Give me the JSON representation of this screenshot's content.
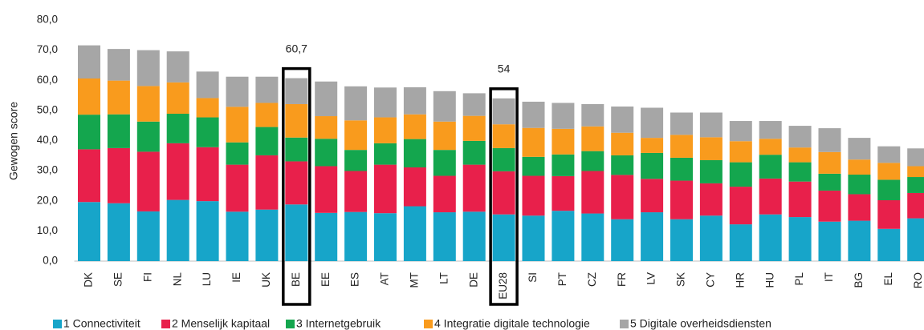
{
  "chart_data": {
    "type": "stacked_bar",
    "y_label": "Gewogen score",
    "categories": [
      "DK",
      "SE",
      "FI",
      "NL",
      "LU",
      "IE",
      "UK",
      "BE",
      "EE",
      "ES",
      "AT",
      "MT",
      "LT",
      "DE",
      "EU28",
      "SI",
      "PT",
      "CZ",
      "FR",
      "LV",
      "SK",
      "CY",
      "HR",
      "HU",
      "PL",
      "IT",
      "BG",
      "EL",
      "RO"
    ],
    "series": [
      {
        "name": "1 Connectiviteit",
        "color": "#17a5c9",
        "values": [
          19.6,
          19.2,
          16.5,
          20.3,
          19.9,
          16.4,
          17.1,
          18.8,
          16.0,
          16.3,
          15.9,
          18.2,
          16.2,
          16.4,
          15.5,
          15.1,
          16.7,
          15.8,
          13.9,
          16.2,
          13.9,
          15.1,
          12.2,
          15.5,
          14.6,
          13.1,
          13.4,
          10.7,
          14.2
        ]
      },
      {
        "name": "2 Menselijk kapitaal",
        "color": "#e8204b",
        "values": [
          17.5,
          18.3,
          19.8,
          18.8,
          17.9,
          15.6,
          18.0,
          14.3,
          15.5,
          13.6,
          16.1,
          12.9,
          12.1,
          15.6,
          14.3,
          13.2,
          11.5,
          14.1,
          14.7,
          11.1,
          12.8,
          10.7,
          12.5,
          11.9,
          11.8,
          10.3,
          8.8,
          9.5,
          8.4
        ]
      },
      {
        "name": "3 Internetgebruik",
        "color": "#14a64e",
        "values": [
          11.5,
          11.2,
          10.0,
          9.8,
          9.9,
          7.4,
          9.4,
          7.9,
          9.1,
          7.0,
          7.1,
          9.4,
          8.6,
          7.9,
          7.7,
          6.3,
          7.2,
          6.6,
          6.5,
          8.6,
          7.6,
          7.7,
          8.1,
          7.9,
          6.4,
          5.6,
          6.5,
          6.8,
          5.3
        ]
      },
      {
        "name": "4 Integratie digitale technologie",
        "color": "#f99b1d",
        "values": [
          12.0,
          11.2,
          11.8,
          10.4,
          6.4,
          11.8,
          8.0,
          11.1,
          7.5,
          9.8,
          8.6,
          8.2,
          9.4,
          8.3,
          7.9,
          9.6,
          8.5,
          8.2,
          7.5,
          5.0,
          7.6,
          7.6,
          7.0,
          5.3,
          4.9,
          7.2,
          5.0,
          5.6,
          3.6
        ]
      },
      {
        "name": "5 Digitale overheidsdiensten",
        "color": "#a6a6a6",
        "values": [
          11.0,
          10.5,
          11.9,
          10.3,
          8.8,
          10.0,
          8.7,
          8.6,
          11.5,
          11.3,
          9.9,
          9.0,
          10.1,
          7.5,
          8.6,
          8.7,
          8.6,
          7.4,
          8.7,
          10.0,
          7.4,
          8.2,
          6.7,
          5.9,
          7.2,
          7.9,
          7.2,
          5.5,
          5.9
        ]
      }
    ],
    "ylim": [
      0,
      80
    ],
    "yticks": [
      {
        "value": 0,
        "label": "0,0"
      },
      {
        "value": 10,
        "label": "10,0"
      },
      {
        "value": 20,
        "label": "20,0"
      },
      {
        "value": 30,
        "label": "30,0"
      },
      {
        "value": 40,
        "label": "40,0"
      },
      {
        "value": 50,
        "label": "50,0"
      },
      {
        "value": 60,
        "label": "60,0"
      },
      {
        "value": 70,
        "label": "70,0"
      },
      {
        "value": 80,
        "label": "80,0"
      }
    ],
    "annotations": [
      {
        "text": "60,7",
        "category": "BE"
      },
      {
        "text": "54",
        "category": "EU28"
      }
    ],
    "legend": "bottom"
  }
}
